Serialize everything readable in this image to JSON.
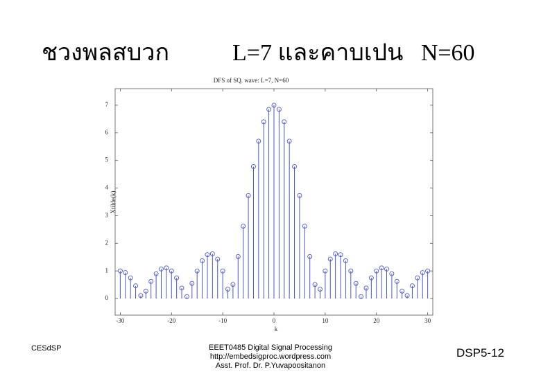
{
  "slide": {
    "title_left": "ชวงพลสบวก",
    "title_right": "L=7 และคาบเปน   N=60",
    "footer_left": "CESdSP",
    "footer_center": [
      "EEET0485 Digital Signal Processing",
      "http://embedsigproc.wordpress.com",
      "Asst. Prof. Dr. P.Yuvapoositanon"
    ],
    "footer_right": "DSP5-12"
  },
  "chart_data": {
    "type": "stem",
    "title": "DFS of SQ. wave: L=7, N=60",
    "xlabel": "k",
    "ylabel": "Xtilde(k)",
    "x": [
      -30,
      -29,
      -28,
      -27,
      -26,
      -25,
      -24,
      -23,
      -22,
      -21,
      -20,
      -19,
      -18,
      -17,
      -16,
      -15,
      -14,
      -13,
      -12,
      -11,
      -10,
      -9,
      -8,
      -7,
      -6,
      -5,
      -4,
      -3,
      -2,
      -1,
      0,
      1,
      2,
      3,
      4,
      5,
      6,
      7,
      8,
      9,
      10,
      11,
      12,
      13,
      14,
      15,
      16,
      17,
      18,
      19,
      20,
      21,
      22,
      23,
      24,
      25,
      26,
      27,
      28,
      29,
      30
    ],
    "values": [
      1,
      0.94,
      0.75,
      0.46,
      0.11,
      0.27,
      0.62,
      0.9,
      1.07,
      1.11,
      1,
      0.75,
      0.38,
      0.07,
      0.55,
      1,
      1.37,
      1.59,
      1.62,
      1.43,
      1,
      0.34,
      0.51,
      1.52,
      2.62,
      3.73,
      4.78,
      5.7,
      6.4,
      6.85,
      7,
      6.85,
      6.4,
      5.7,
      4.78,
      3.73,
      2.62,
      1.52,
      0.51,
      0.34,
      1,
      1.43,
      1.62,
      1.59,
      1.37,
      1,
      0.55,
      0.07,
      0.38,
      0.75,
      1,
      1.11,
      1.07,
      0.9,
      0.62,
      0.27,
      0.11,
      0.46,
      0.75,
      0.94,
      1
    ],
    "color": "#4a55c8",
    "xlim": [
      -31,
      31
    ],
    "ylim": [
      -0.6,
      7.6
    ],
    "xticks": [
      -30,
      -20,
      -10,
      0,
      10,
      20,
      30
    ],
    "yticks": [
      0,
      1,
      2,
      3,
      4,
      5,
      6,
      7
    ]
  }
}
